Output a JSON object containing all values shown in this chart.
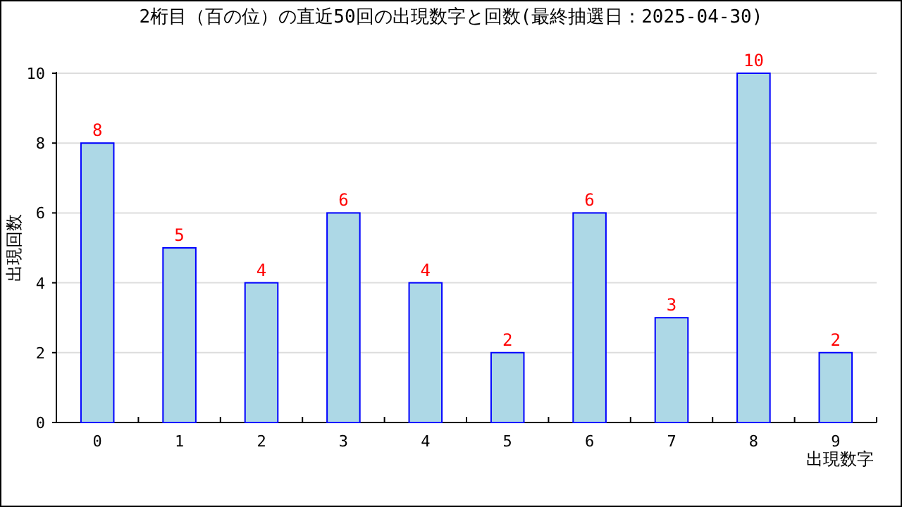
{
  "chart_data": {
    "type": "bar",
    "title": "2桁目（百の位）の直近50回の出現数字と回数(最終抽選日：2025-04-30)",
    "xlabel": "出現数字",
    "ylabel": "出現回数",
    "categories": [
      "0",
      "1",
      "2",
      "3",
      "4",
      "5",
      "6",
      "7",
      "8",
      "9"
    ],
    "series": [
      {
        "color": "#add8e6",
        "values": [
          8,
          5,
          4,
          6,
          4,
          2,
          6,
          3,
          10,
          2
        ]
      }
    ],
    "ylim": [
      0,
      10
    ],
    "yticks": [
      0,
      2,
      4,
      6,
      8,
      10
    ],
    "grid": "y",
    "data_labels": true
  }
}
